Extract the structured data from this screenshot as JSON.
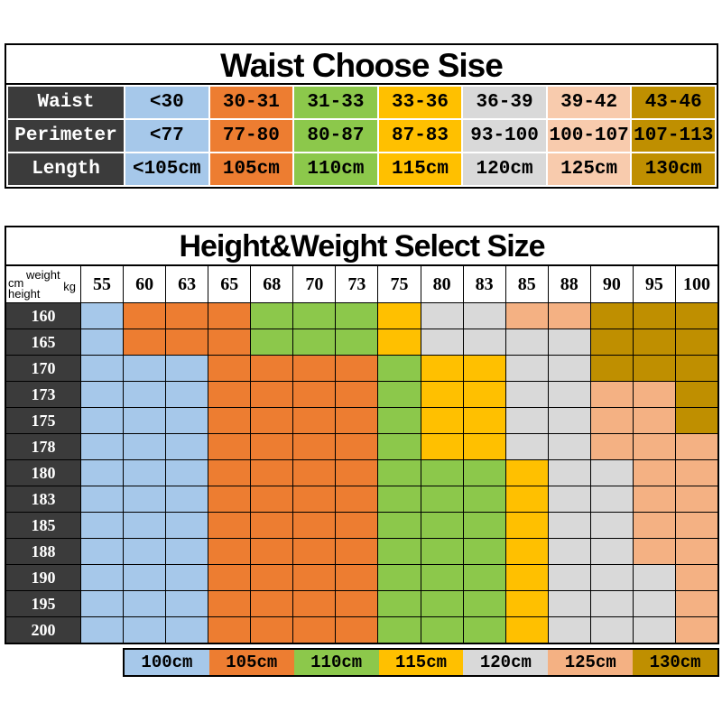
{
  "colors": {
    "blue": "#A6C8EA",
    "orange": "#ED7D31",
    "green": "#8CC84B",
    "yellow": "#FFC000",
    "gray": "#D9D9D9",
    "peach": "#F4B183",
    "peach_light": "#F8CBAD",
    "gold": "#BF8F00",
    "dark": "#3B3B3B"
  },
  "waist_table": {
    "title": "Waist Choose Sise",
    "column_colors": [
      "blue",
      "orange",
      "green",
      "yellow",
      "gray",
      "peach_light",
      "gold"
    ],
    "rows": [
      {
        "label": "Waist",
        "cells": [
          "<30",
          "30-31",
          "31-33",
          "33-36",
          "36-39",
          "39-42",
          "43-46"
        ]
      },
      {
        "label": "Perimeter",
        "cells": [
          "<77",
          "77-80",
          "80-87",
          "87-83",
          "93-100",
          "100-107",
          "107-113"
        ]
      },
      {
        "label": "Length",
        "cells": [
          "<105cm",
          "105cm",
          "110cm",
          "115cm",
          "120cm",
          "125cm",
          "130cm"
        ]
      }
    ]
  },
  "size_table": {
    "title": "Height&Weight Select Size",
    "corner": {
      "cm": "cm",
      "weight": "weight",
      "height": "height",
      "kg": "kg"
    },
    "weights": [
      "55",
      "60",
      "63",
      "65",
      "68",
      "70",
      "73",
      "75",
      "80",
      "83",
      "85",
      "88",
      "90",
      "95",
      "100"
    ],
    "size_colors": {
      "100cm": "blue",
      "105cm": "orange",
      "110cm": "green",
      "115cm": "yellow",
      "120cm": "gray",
      "125cm": "peach",
      "130cm": "gold"
    },
    "rows": [
      {
        "height": "160",
        "sizes": [
          "100cm",
          "105cm",
          "105cm",
          "105cm",
          "110cm",
          "110cm",
          "110cm",
          "115cm",
          "120cm",
          "120cm",
          "125cm",
          "125cm",
          "130cm",
          "130cm",
          "130cm"
        ]
      },
      {
        "height": "165",
        "sizes": [
          "100cm",
          "105cm",
          "105cm",
          "105cm",
          "110cm",
          "110cm",
          "110cm",
          "115cm",
          "120cm",
          "120cm",
          "120cm",
          "120cm",
          "130cm",
          "130cm",
          "130cm"
        ]
      },
      {
        "height": "170",
        "sizes": [
          "100cm",
          "100cm",
          "100cm",
          "105cm",
          "105cm",
          "105cm",
          "105cm",
          "110cm",
          "115cm",
          "115cm",
          "120cm",
          "120cm",
          "130cm",
          "130cm",
          "130cm"
        ]
      },
      {
        "height": "173",
        "sizes": [
          "100cm",
          "100cm",
          "100cm",
          "105cm",
          "105cm",
          "105cm",
          "105cm",
          "110cm",
          "115cm",
          "115cm",
          "120cm",
          "120cm",
          "125cm",
          "125cm",
          "130cm"
        ]
      },
      {
        "height": "175",
        "sizes": [
          "100cm",
          "100cm",
          "100cm",
          "105cm",
          "105cm",
          "105cm",
          "105cm",
          "110cm",
          "115cm",
          "115cm",
          "120cm",
          "120cm",
          "125cm",
          "125cm",
          "130cm"
        ]
      },
      {
        "height": "178",
        "sizes": [
          "100cm",
          "100cm",
          "100cm",
          "105cm",
          "105cm",
          "105cm",
          "105cm",
          "110cm",
          "115cm",
          "115cm",
          "120cm",
          "120cm",
          "125cm",
          "125cm",
          "125cm"
        ]
      },
      {
        "height": "180",
        "sizes": [
          "100cm",
          "100cm",
          "100cm",
          "105cm",
          "105cm",
          "105cm",
          "105cm",
          "110cm",
          "110cm",
          "110cm",
          "115cm",
          "120cm",
          "120cm",
          "125cm",
          "125cm"
        ]
      },
      {
        "height": "183",
        "sizes": [
          "100cm",
          "100cm",
          "100cm",
          "105cm",
          "105cm",
          "105cm",
          "105cm",
          "110cm",
          "110cm",
          "110cm",
          "115cm",
          "120cm",
          "120cm",
          "125cm",
          "125cm"
        ]
      },
      {
        "height": "185",
        "sizes": [
          "100cm",
          "100cm",
          "100cm",
          "105cm",
          "105cm",
          "105cm",
          "105cm",
          "110cm",
          "110cm",
          "110cm",
          "115cm",
          "120cm",
          "120cm",
          "125cm",
          "125cm"
        ]
      },
      {
        "height": "188",
        "sizes": [
          "100cm",
          "100cm",
          "100cm",
          "105cm",
          "105cm",
          "105cm",
          "105cm",
          "110cm",
          "110cm",
          "110cm",
          "115cm",
          "120cm",
          "120cm",
          "125cm",
          "125cm"
        ]
      },
      {
        "height": "190",
        "sizes": [
          "100cm",
          "100cm",
          "100cm",
          "105cm",
          "105cm",
          "105cm",
          "105cm",
          "110cm",
          "110cm",
          "110cm",
          "115cm",
          "120cm",
          "120cm",
          "120cm",
          "125cm"
        ]
      },
      {
        "height": "195",
        "sizes": [
          "100cm",
          "100cm",
          "100cm",
          "105cm",
          "105cm",
          "105cm",
          "105cm",
          "110cm",
          "110cm",
          "110cm",
          "115cm",
          "120cm",
          "120cm",
          "120cm",
          "125cm"
        ]
      },
      {
        "height": "200",
        "sizes": [
          "100cm",
          "100cm",
          "100cm",
          "105cm",
          "105cm",
          "105cm",
          "105cm",
          "110cm",
          "110cm",
          "110cm",
          "115cm",
          "120cm",
          "120cm",
          "120cm",
          "125cm"
        ]
      }
    ]
  },
  "legend": {
    "items": [
      {
        "label": "100cm",
        "color": "blue"
      },
      {
        "label": "105cm",
        "color": "orange"
      },
      {
        "label": "110cm",
        "color": "green"
      },
      {
        "label": "115cm",
        "color": "yellow"
      },
      {
        "label": "120cm",
        "color": "gray"
      },
      {
        "label": "125cm",
        "color": "peach"
      },
      {
        "label": "130cm",
        "color": "gold"
      }
    ]
  },
  "chart_data": [
    {
      "type": "table",
      "title": "Waist Choose Sise",
      "rows": [
        [
          "Waist",
          "<30",
          "30-31",
          "31-33",
          "33-36",
          "36-39",
          "39-42",
          "43-46"
        ],
        [
          "Perimeter",
          "<77",
          "77-80",
          "80-87",
          "87-83",
          "93-100",
          "100-107",
          "107-113"
        ],
        [
          "Length",
          "<105cm",
          "105cm",
          "110cm",
          "115cm",
          "120cm",
          "125cm",
          "130cm"
        ]
      ]
    },
    {
      "type": "heatmap",
      "title": "Height&Weight Select Size",
      "xlabel": "weight kg",
      "ylabel": "height cm",
      "x": [
        55,
        60,
        63,
        65,
        68,
        70,
        73,
        75,
        80,
        83,
        85,
        88,
        90,
        95,
        100
      ],
      "y": [
        160,
        165,
        170,
        173,
        175,
        178,
        180,
        183,
        185,
        188,
        190,
        195,
        200
      ],
      "values_unit": "garment length cm",
      "values": [
        [
          100,
          105,
          105,
          105,
          110,
          110,
          110,
          115,
          120,
          120,
          125,
          125,
          130,
          130,
          130
        ],
        [
          100,
          105,
          105,
          105,
          110,
          110,
          110,
          115,
          120,
          120,
          120,
          120,
          130,
          130,
          130
        ],
        [
          100,
          100,
          100,
          105,
          105,
          105,
          105,
          110,
          115,
          115,
          120,
          120,
          130,
          130,
          130
        ],
        [
          100,
          100,
          100,
          105,
          105,
          105,
          105,
          110,
          115,
          115,
          120,
          120,
          125,
          125,
          130
        ],
        [
          100,
          100,
          100,
          105,
          105,
          105,
          105,
          110,
          115,
          115,
          120,
          120,
          125,
          125,
          130
        ],
        [
          100,
          100,
          100,
          105,
          105,
          105,
          105,
          110,
          115,
          115,
          120,
          120,
          125,
          125,
          125
        ],
        [
          100,
          100,
          100,
          105,
          105,
          105,
          105,
          110,
          110,
          110,
          115,
          120,
          120,
          125,
          125
        ],
        [
          100,
          100,
          100,
          105,
          105,
          105,
          105,
          110,
          110,
          110,
          115,
          120,
          120,
          125,
          125
        ],
        [
          100,
          100,
          100,
          105,
          105,
          105,
          105,
          110,
          110,
          110,
          115,
          120,
          120,
          125,
          125
        ],
        [
          100,
          100,
          100,
          105,
          105,
          105,
          105,
          110,
          110,
          110,
          115,
          120,
          120,
          125,
          125
        ],
        [
          100,
          100,
          100,
          105,
          105,
          105,
          105,
          110,
          110,
          110,
          115,
          120,
          120,
          120,
          125
        ],
        [
          100,
          100,
          100,
          105,
          105,
          105,
          105,
          110,
          110,
          110,
          115,
          120,
          120,
          120,
          125
        ],
        [
          100,
          100,
          100,
          105,
          105,
          105,
          105,
          110,
          110,
          110,
          115,
          120,
          120,
          120,
          125
        ]
      ],
      "legend": [
        "100cm",
        "105cm",
        "110cm",
        "115cm",
        "120cm",
        "125cm",
        "130cm"
      ],
      "legend_position": "bottom"
    }
  ]
}
